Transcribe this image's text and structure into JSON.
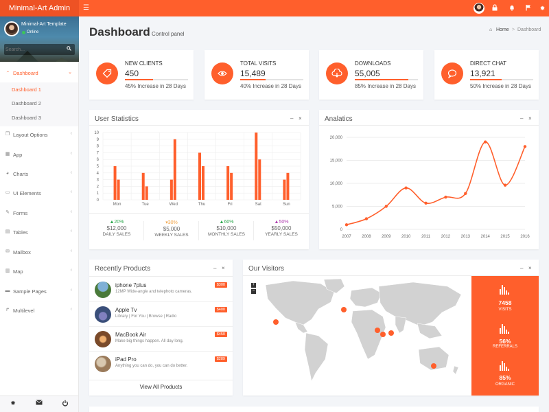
{
  "header": {
    "brand": "Minimal-Art Admin",
    "icons": [
      "menu-icon",
      "user-avatar",
      "lock-icon",
      "bell-icon",
      "flag-icon",
      "gear-icon"
    ]
  },
  "sidebar": {
    "profile_name": "Minimal-Art Template",
    "profile_status": "Online",
    "search_placeholder": "Search...",
    "menu": [
      {
        "label": "Dashboard",
        "icon": "dashboard-icon",
        "expanded": true
      },
      {
        "label": "Layout Options",
        "icon": "copy-icon"
      },
      {
        "label": "App",
        "icon": "grid-icon"
      },
      {
        "label": "Charts",
        "icon": "pie-chart-icon"
      },
      {
        "label": "UI Elements",
        "icon": "laptop-icon"
      },
      {
        "label": "Forms",
        "icon": "edit-icon"
      },
      {
        "label": "Tables",
        "icon": "table-icon"
      },
      {
        "label": "Mailbox",
        "icon": "envelope-icon"
      },
      {
        "label": "Map",
        "icon": "map-icon"
      },
      {
        "label": "Sample Pages",
        "icon": "folder-icon"
      },
      {
        "label": "Multilevel",
        "icon": "share-icon"
      }
    ],
    "submenu": [
      "Dashboard 1",
      "Dashboard 2",
      "Dashboard 3"
    ],
    "footer_icons": [
      "gear-icon",
      "envelope-icon",
      "power-icon"
    ]
  },
  "page": {
    "title": "Dashboard",
    "subtitle": "Control panel",
    "breadcrumb": {
      "home": "Home",
      "sep": ">",
      "current": "Dashboard"
    }
  },
  "stats": [
    {
      "label": "NEW CLIENTS",
      "value": "450",
      "desc": "45% Increase in 28 Days",
      "progress": 0.45,
      "icon": "tag-icon"
    },
    {
      "label": "TOTAL VISITS",
      "value": "15,489",
      "desc": "40% Increase in 28 Days",
      "progress": 0.4,
      "icon": "eye-icon"
    },
    {
      "label": "DOWNLOADS",
      "value": "55,005",
      "desc": "85% Increase in 28 Days",
      "progress": 0.85,
      "icon": "cloud-download-icon"
    },
    {
      "label": "DIRECT CHAT",
      "value": "13,921",
      "desc": "50% Increase in 28 Days",
      "progress": 0.5,
      "icon": "chat-icon"
    }
  ],
  "user_stats": {
    "title": "User Statistics",
    "footer": [
      {
        "pct": "20%",
        "arrow": "up",
        "color": "#2ea84f",
        "value": "$12,000",
        "label": "DAILY SALES"
      },
      {
        "pct": "30%",
        "arrow": "down",
        "color": "#f0a040",
        "value": "$5,000",
        "label": "WEEKLY SALES"
      },
      {
        "pct": "60%",
        "arrow": "up",
        "color": "#2ea84f",
        "value": "$10,000",
        "label": "MONTHLY SALES"
      },
      {
        "pct": "50%",
        "arrow": "up",
        "color": "#b040b0",
        "value": "$50,000",
        "label": "YEARLY SALES"
      }
    ]
  },
  "analytics": {
    "title": "Analatics"
  },
  "products": {
    "title": "Recently Products",
    "items": [
      {
        "name": "iphone 7plus",
        "desc": "12MP Wide-angle and telephoto cameras.",
        "price": "$300",
        "thumb_color": "#4a7a3a"
      },
      {
        "name": "Apple Tv",
        "desc": "Library | For You | Browse | Radio",
        "price": "$400",
        "thumb_color": "#3a4f7a"
      },
      {
        "name": "MacBook Air",
        "desc": "Make big things happen. All day long.",
        "price": "$450",
        "thumb_color": "#7a4a2a"
      },
      {
        "name": "iPad Pro",
        "desc": "Anything you can do, you can do better.",
        "price": "$289",
        "thumb_color": "#9a7a5a"
      }
    ],
    "view_all": "View All Products"
  },
  "visitors": {
    "title": "Our Visitors",
    "zoom_in": "+",
    "zoom_out": "−",
    "stats": [
      {
        "value": "7458",
        "label": "VISITS"
      },
      {
        "value": "56%",
        "label": "REFERRALS"
      },
      {
        "value": "85%",
        "label": "ORGANIC"
      }
    ]
  },
  "colors": {
    "accent": "#ff5f2c",
    "sidebar_bg": "#ffffff",
    "page_bg": "#f3f5f8"
  },
  "chart_data": [
    {
      "type": "bar",
      "title": "User Statistics",
      "categories": [
        "Mon",
        "Tue",
        "Wed",
        "Thu",
        "Fri",
        "Sat",
        "Sun"
      ],
      "series": [
        {
          "values": [
            5,
            4,
            3,
            7,
            5,
            10,
            3
          ]
        },
        {
          "values": [
            3,
            2,
            9,
            5,
            4,
            6,
            4
          ]
        }
      ],
      "ylim": [
        0,
        10
      ],
      "yticks": [
        0,
        1,
        2,
        3,
        4,
        5,
        6,
        7,
        8,
        9,
        10
      ],
      "grid": true
    },
    {
      "type": "line",
      "title": "Analatics",
      "x": [
        2007,
        2008,
        2009,
        2010,
        2011,
        2012,
        2013,
        2014,
        2015,
        2016
      ],
      "series": [
        {
          "values": [
            1000,
            2300,
            5000,
            9000,
            5700,
            7000,
            7800,
            19000,
            9600,
            18000
          ]
        }
      ],
      "ylim": [
        0,
        20000
      ],
      "yticks": [
        "0",
        "5,000",
        "10,000",
        "15,000",
        "20,000"
      ],
      "grid": true
    }
  ]
}
